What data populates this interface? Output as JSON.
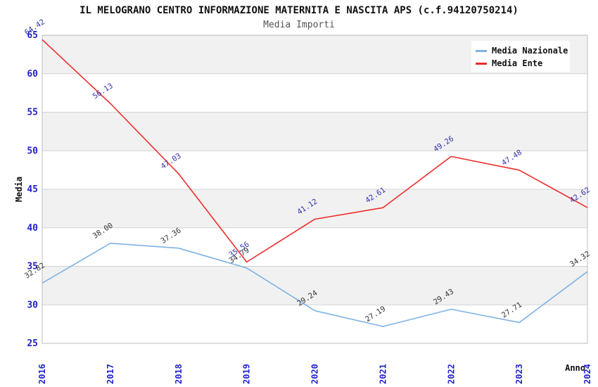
{
  "title": "IL MELOGRANO CENTRO INFORMAZIONE MATERNITA E NASCITA APS (c.f.94120750214)",
  "subtitle": "Media Importi",
  "chart_data": {
    "type": "line",
    "x": [
      2016,
      2017,
      2018,
      2019,
      2020,
      2021,
      2022,
      2023,
      2024
    ],
    "xlabel": "Anno",
    "ylabel": "Media",
    "ylim": [
      25,
      65
    ],
    "ytick_step": 5,
    "grid": "horizontal-bands-alternating",
    "legend_position": "top-right",
    "series": [
      {
        "name": "Media Nazionale",
        "color": "#7fb2e5",
        "label_color": "#333333",
        "values": [
          32.82,
          38.0,
          37.36,
          34.79,
          29.24,
          27.19,
          29.43,
          27.71,
          34.32
        ]
      },
      {
        "name": "Media Ente",
        "color": "#ee2c2c",
        "label_color": "#3333aa",
        "values": [
          64.42,
          56.13,
          47.03,
          35.56,
          41.12,
          42.61,
          49.26,
          47.48,
          42.62
        ]
      }
    ]
  },
  "colors": {
    "background": "#ffffff",
    "band": "#f1f1f1",
    "gridline": "#d4d4d4",
    "plot_border": "#bcbcbc",
    "axis_tick_label": "#2222cc",
    "axis_title": "#111111",
    "title": "#111111",
    "subtitle": "#555555",
    "legend_background": "#ffffff"
  }
}
